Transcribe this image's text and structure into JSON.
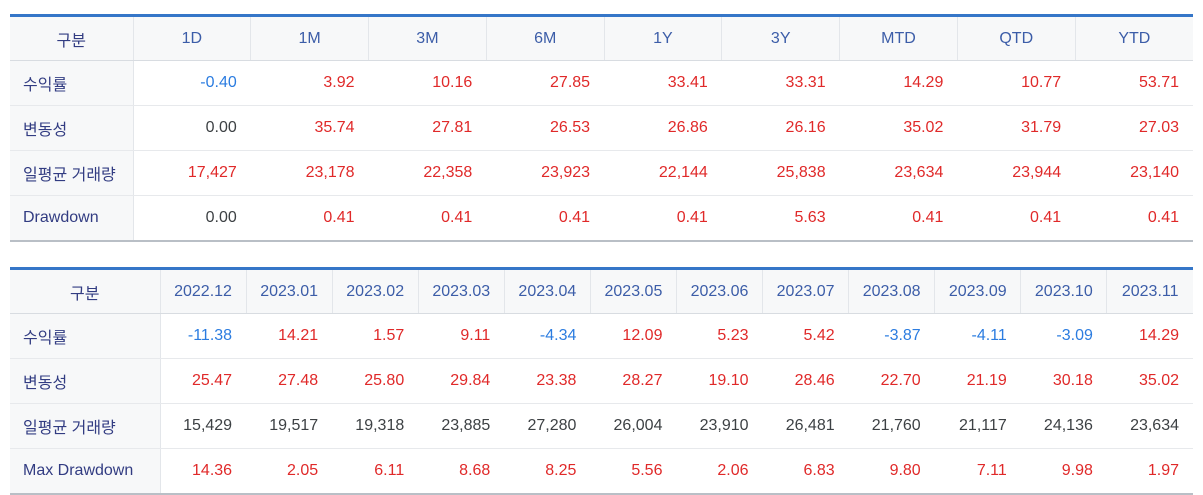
{
  "colors": {
    "accent_top_border": "#3576c8",
    "positive_value": "#e02929",
    "negative_value": "#2b7ce0",
    "neutral_value": "#3d4144",
    "column_header_text": "#3c5da8",
    "row_label_text": "#323c82"
  },
  "tables": [
    {
      "name": "period-performance",
      "corner_label": "구분",
      "columns": [
        "1D",
        "1M",
        "3M",
        "6M",
        "1Y",
        "3Y",
        "MTD",
        "QTD",
        "YTD"
      ],
      "rows": [
        {
          "label": "수익률",
          "values": [
            "-0.40",
            "3.92",
            "10.16",
            "27.85",
            "33.41",
            "33.31",
            "14.29",
            "10.77",
            "53.71"
          ],
          "colors": [
            "b",
            "r",
            "r",
            "r",
            "r",
            "r",
            "r",
            "r",
            "r"
          ]
        },
        {
          "label": "변동성",
          "values": [
            "0.00",
            "35.74",
            "27.81",
            "26.53",
            "26.86",
            "26.16",
            "35.02",
            "31.79",
            "27.03"
          ],
          "colors": [
            "d",
            "r",
            "r",
            "r",
            "r",
            "r",
            "r",
            "r",
            "r"
          ]
        },
        {
          "label": "일평균 거래량",
          "values": [
            "17,427",
            "23,178",
            "22,358",
            "23,923",
            "22,144",
            "25,838",
            "23,634",
            "23,944",
            "23,140"
          ],
          "colors": [
            "r",
            "r",
            "r",
            "r",
            "r",
            "r",
            "r",
            "r",
            "r"
          ]
        },
        {
          "label": "Drawdown",
          "values": [
            "0.00",
            "0.41",
            "0.41",
            "0.41",
            "0.41",
            "5.63",
            "0.41",
            "0.41",
            "0.41"
          ],
          "colors": [
            "d",
            "r",
            "r",
            "r",
            "r",
            "r",
            "r",
            "r",
            "r"
          ]
        }
      ]
    },
    {
      "name": "monthly-performance",
      "corner_label": "구분",
      "columns": [
        "2022.12",
        "2023.01",
        "2023.02",
        "2023.03",
        "2023.04",
        "2023.05",
        "2023.06",
        "2023.07",
        "2023.08",
        "2023.09",
        "2023.10",
        "2023.11"
      ],
      "rows": [
        {
          "label": "수익률",
          "values": [
            "-11.38",
            "14.21",
            "1.57",
            "9.11",
            "-4.34",
            "12.09",
            "5.23",
            "5.42",
            "-3.87",
            "-4.11",
            "-3.09",
            "14.29"
          ],
          "colors": [
            "b",
            "r",
            "r",
            "r",
            "b",
            "r",
            "r",
            "r",
            "b",
            "b",
            "b",
            "r"
          ]
        },
        {
          "label": "변동성",
          "values": [
            "25.47",
            "27.48",
            "25.80",
            "29.84",
            "23.38",
            "28.27",
            "19.10",
            "28.46",
            "22.70",
            "21.19",
            "30.18",
            "35.02"
          ],
          "colors": [
            "r",
            "r",
            "r",
            "r",
            "r",
            "r",
            "r",
            "r",
            "r",
            "r",
            "r",
            "r"
          ]
        },
        {
          "label": "일평균 거래량",
          "values": [
            "15,429",
            "19,517",
            "19,318",
            "23,885",
            "27,280",
            "26,004",
            "23,910",
            "26,481",
            "21,760",
            "21,117",
            "24,136",
            "23,634"
          ],
          "colors": [
            "d",
            "d",
            "d",
            "d",
            "d",
            "d",
            "d",
            "d",
            "d",
            "d",
            "d",
            "d"
          ]
        },
        {
          "label": "Max Drawdown",
          "values": [
            "14.36",
            "2.05",
            "6.11",
            "8.68",
            "8.25",
            "5.56",
            "2.06",
            "6.83",
            "9.80",
            "7.11",
            "9.98",
            "1.97"
          ],
          "colors": [
            "r",
            "r",
            "r",
            "r",
            "r",
            "r",
            "r",
            "r",
            "r",
            "r",
            "r",
            "r"
          ]
        }
      ]
    }
  ]
}
